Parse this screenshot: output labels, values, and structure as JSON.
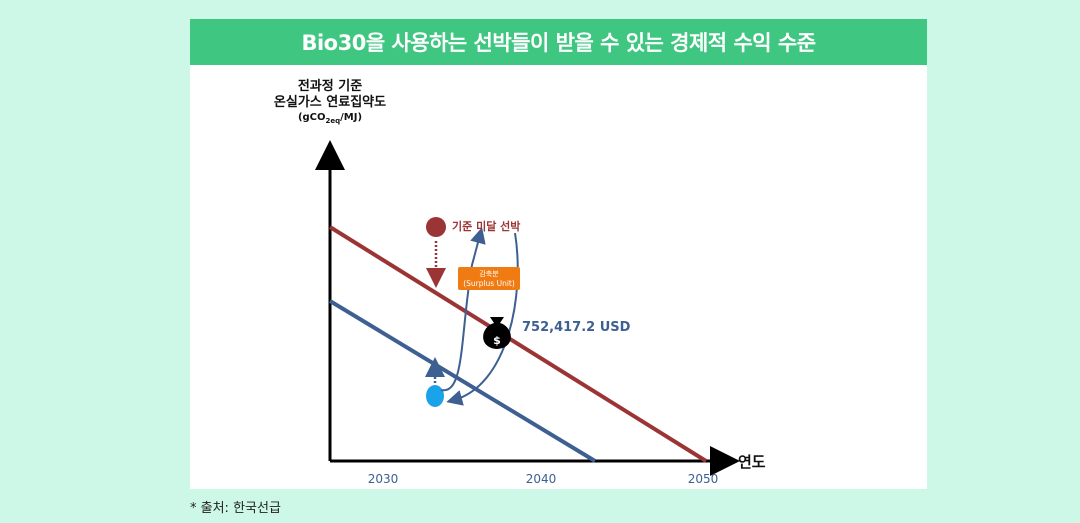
{
  "title": "Bio30을 사용하는 선박들이 받을 수 있는 경제적 수익 수준",
  "y_axis": {
    "line1": "전과정 기준",
    "line2": "온실가스 연료집약도",
    "unit_prefix": "(gCO",
    "unit_sub": "2eq",
    "unit_suffix": "/MJ)"
  },
  "x_axis_label": "연도",
  "x_ticks": [
    "2030",
    "2040",
    "2050"
  ],
  "legend_red_point": "기준 미달 선박",
  "surplus_badge": {
    "line1": "감축분",
    "line2": "(Surplus Unit)"
  },
  "money_icon_symbol": "$",
  "value_label": "752,417.2 USD",
  "source_note": "* 출처: 한국선급",
  "colors": {
    "background": "#cdf7e7",
    "title_bar": "#3fc781",
    "red_line": "#9b3535",
    "blue_line": "#3d5f91",
    "cyan_point": "#1aa3e8",
    "badge": "#f07b12"
  }
}
